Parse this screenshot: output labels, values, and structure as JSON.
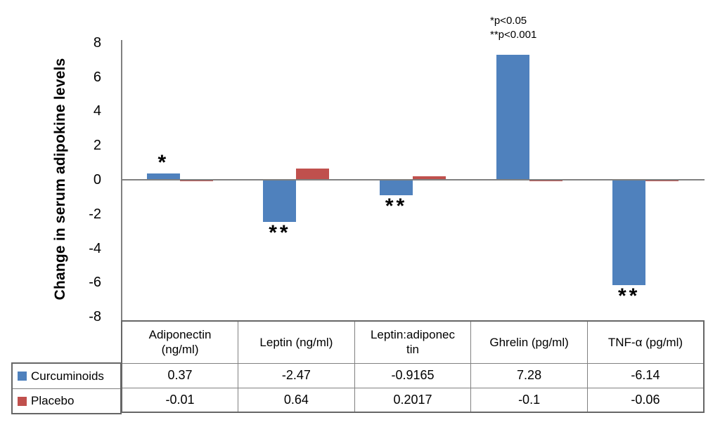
{
  "chart_data": {
    "type": "bar",
    "title": "",
    "ylabel": "Change in serum adipokine levels",
    "xlabel": "",
    "categories": [
      "Adiponectin (ng/ml)",
      "Leptin (ng/ml)",
      "Leptin:adiponectin",
      "Ghrelin (pg/ml)",
      "TNF-α (pg/ml)"
    ],
    "category_display": [
      "Adiponectin\n(ng/ml)",
      "Leptin (ng/ml)",
      "Leptin:adiponec\ntin",
      "Ghrelin (pg/ml)",
      "TNF-α (pg/ml)"
    ],
    "series": [
      {
        "name": "Curcuminoids",
        "color": "#4F81BD",
        "values": [
          0.37,
          -2.47,
          -0.9165,
          7.28,
          -6.14
        ]
      },
      {
        "name": "Placebo",
        "color": "#C0504D",
        "values": [
          -0.01,
          0.64,
          0.2017,
          -0.1,
          -0.06
        ]
      }
    ],
    "significance_markers": [
      "*",
      "**",
      "**",
      "",
      "**"
    ],
    "annotations": [
      "*p<0.05",
      "**p<0.001"
    ],
    "ylim": [
      -8,
      8
    ],
    "yticks": [
      8,
      6,
      4,
      2,
      0,
      -2,
      -4,
      -6,
      -8
    ],
    "grid": false,
    "legend_position": "table-left"
  },
  "colors": {
    "curcuminoids": "#4F81BD",
    "placebo": "#C0504D",
    "axis_line": "#808080",
    "table_border": "#808080",
    "text": "#000000"
  }
}
